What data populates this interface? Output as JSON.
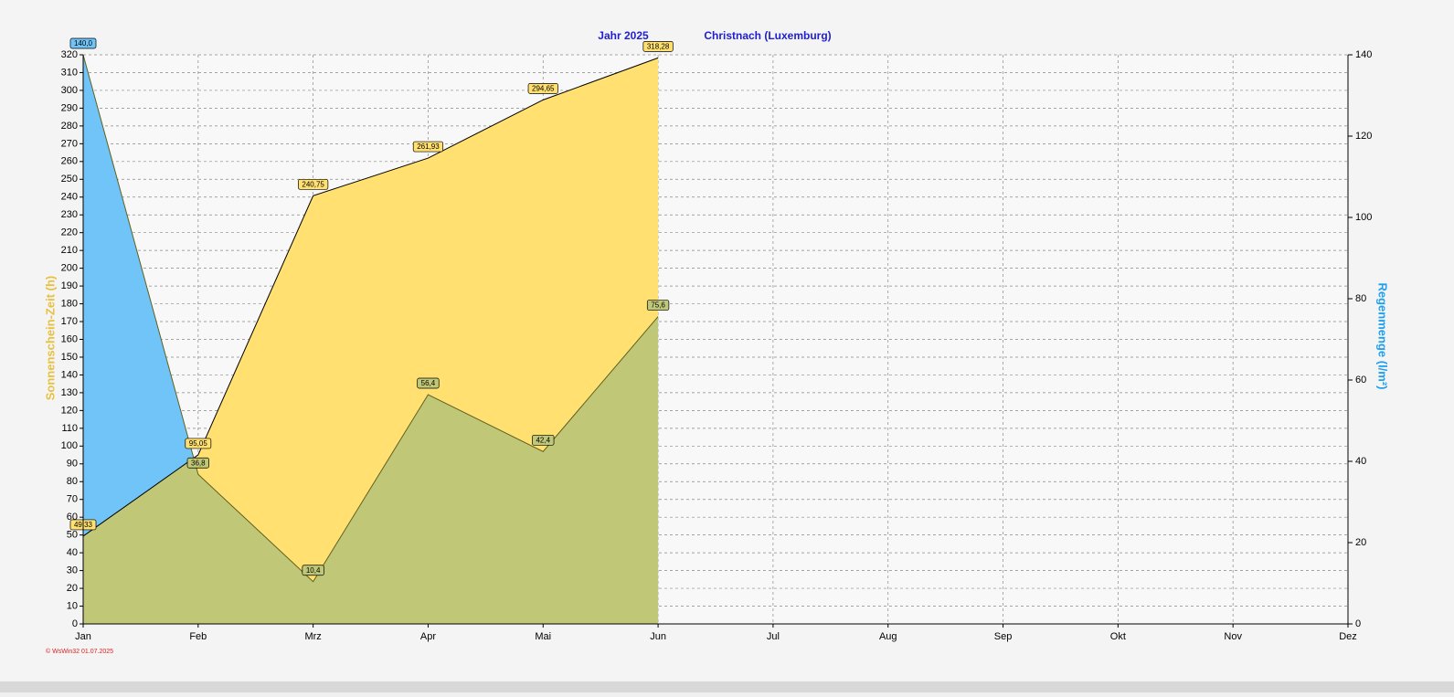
{
  "chart_data": {
    "type": "area",
    "title": "Jahr  2025",
    "subtitle": "Christnach (Luxemburg)",
    "ylabel": "Sonnenschein-Zeit  (h)",
    "y2label": "Regenmenge  (l/m²)",
    "footer": "© WsWin32  01.07.2025",
    "categories": [
      "Jan",
      "Feb",
      "Mrz",
      "Apr",
      "Mai",
      "Jun",
      "Jul",
      "Aug",
      "Sep",
      "Okt",
      "Nov",
      "Dez"
    ],
    "series": [
      {
        "name": "Sonnenschein-Zeit",
        "color": "#ffe070",
        "values": [
          49.33,
          95.05,
          240.75,
          261.93,
          294.65,
          318.28,
          null,
          null,
          null,
          null,
          null,
          null
        ],
        "value_labels": [
          "49,33",
          "95,05",
          "240,75",
          "261,93",
          "294,65",
          "318,28",
          null,
          null,
          null,
          null,
          null,
          null
        ]
      },
      {
        "name": "Regenmenge",
        "color": "#70c4f8",
        "axis": "y2",
        "values": [
          140.0,
          36.8,
          10.4,
          56.4,
          42.4,
          75.6,
          null,
          null,
          null,
          null,
          null,
          null
        ],
        "value_labels": [
          "140,0",
          "36,8",
          "10,4",
          "56,4",
          "42,4",
          "75,6",
          null,
          null,
          null,
          null,
          null,
          null
        ]
      }
    ],
    "overlap_color": "#c0c878",
    "ylim": [
      0,
      320
    ],
    "yticks": [
      0,
      10,
      20,
      30,
      40,
      50,
      60,
      70,
      80,
      90,
      100,
      110,
      120,
      130,
      140,
      150,
      160,
      170,
      180,
      190,
      200,
      210,
      220,
      230,
      240,
      250,
      260,
      270,
      280,
      290,
      300,
      310,
      320
    ],
    "y2lim": [
      0,
      140
    ],
    "y2ticks": [
      0,
      20,
      40,
      60,
      80,
      100,
      120,
      140
    ],
    "grid": true
  }
}
